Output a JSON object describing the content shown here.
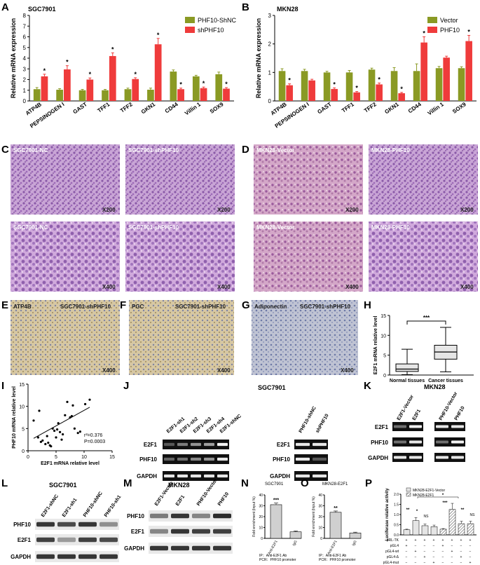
{
  "panels": {
    "A": {
      "label": "A",
      "title": "SGC7901",
      "ylabel": "Relative mRNA expression"
    },
    "B": {
      "label": "B",
      "title": "MKN28",
      "ylabel": "Relative mRNA expression"
    },
    "C": {
      "label": "C",
      "images": [
        "SGC7901-NC",
        "SGC7901-shPHF10",
        "SGC7901-NC",
        "SGC7901-shPHF10"
      ],
      "mags": [
        "X200",
        "X200",
        "X400",
        "X400"
      ]
    },
    "D": {
      "label": "D",
      "images": [
        "MKN28-Vector",
        "MKN28-PHF10",
        "MKN28-Vector",
        "MKN28-PHF10"
      ],
      "mags": [
        "X200",
        "X200",
        "X400",
        "X400"
      ]
    },
    "E": {
      "label": "E",
      "marker": "ATP4B",
      "cell": "SGC7901-shPHF10",
      "mag": "X400"
    },
    "F": {
      "label": "F",
      "marker": "PGC",
      "cell": "SGC7901-shPHF10",
      "mag": "X400"
    },
    "G": {
      "label": "G",
      "marker": "Adiponectin",
      "cell": "SGC7901-shPHF10",
      "mag": "X400"
    },
    "H": {
      "label": "H",
      "ylabel": "E2F1 mRNA relative level",
      "sig": "***"
    },
    "I": {
      "label": "I",
      "xlabel": "E2F1 mRNA relative level",
      "ylabel": "PHF10 mRNA  relative level",
      "r2": "r²=0.376",
      "p": "P=0.0003"
    },
    "J": {
      "label": "J",
      "title": "SGC7901",
      "lanes_left": [
        "E2F1-sh1",
        "E2F1-sh2",
        "E2F1-sh3",
        "E2F1-sh4",
        "E2F1-shNC"
      ],
      "lanes_right": [
        "PHF10-shNC",
        "shPHF10"
      ],
      "rows": [
        "E2F1",
        "PHF10",
        "GAPDH"
      ]
    },
    "K": {
      "label": "K",
      "title": "MKN28",
      "lanes_left": [
        "E2F1-Vector",
        "E2F1"
      ],
      "lanes_right": [
        "PHF10-Vector",
        "PHF10"
      ],
      "rows": [
        "E2F1",
        "PHF10",
        "GAPDH"
      ]
    },
    "L": {
      "label": "L",
      "title": "SGC7901",
      "lanes": [
        "E2F1-shNC",
        "E2F1-sh1",
        "PHF10-shNC",
        "PHF10-sh1"
      ],
      "rows": [
        "PHF10",
        "E2F1",
        "GAPDH"
      ]
    },
    "M": {
      "label": "M",
      "title": "MKN28",
      "lanes": [
        "E2F1-Vector",
        "E2F1",
        "PHF10-Vector",
        "PHF10"
      ],
      "rows": [
        "PHF10",
        "E2F1",
        "GAPDH"
      ]
    },
    "N": {
      "label": "N",
      "title": "SGC7901",
      "ylabel": "Fold enrichment (Input %)",
      "cats": [
        "Anti-E2F1",
        "IgG"
      ],
      "sig": "***",
      "foot1": "IP：Anti-E2F1 Ab",
      "foot2": "PCR：PHF10 promoter"
    },
    "O": {
      "label": "O",
      "title": "MKN28-E2F1",
      "ylabel": "Fold enrichment (Input %)",
      "cats": [
        "Anti-E2F1",
        "IgG"
      ],
      "sig": "**",
      "foot1": "IP：Anti-E2F1 Ab",
      "foot2": "PCR：PHF10 promoter"
    },
    "P": {
      "label": "P",
      "ylabel": "Luciferase relative activity",
      "legend": [
        "MKN28-E2F1-Vector",
        "MKN28-E2F1"
      ],
      "rowlabels": [
        "pRL-TK",
        "pGL4",
        "pGL4-wt",
        "pGL4-Δ",
        "pGL4-mut"
      ],
      "rowsigns": [
        [
          "+",
          "+",
          "+",
          "+",
          "+",
          "+",
          "+",
          "+"
        ],
        [
          "+",
          "−",
          "−",
          "−",
          "+",
          "−",
          "−",
          "−"
        ],
        [
          "−",
          "+",
          "−",
          "−",
          "−",
          "+",
          "−",
          "−"
        ],
        [
          "−",
          "−",
          "+",
          "−",
          "−",
          "−",
          "+",
          "−"
        ],
        [
          "−",
          "−",
          "−",
          "+",
          "−",
          "−",
          "−",
          "+"
        ]
      ],
      "sigs": [
        "**",
        "*",
        "NS",
        "***",
        "**",
        "NS",
        "*"
      ]
    }
  },
  "chart_data": [
    {
      "type": "bar",
      "panel": "A",
      "title": "SGC7901",
      "ylabel": "Relative mRNA expression",
      "ylim": [
        0,
        8
      ],
      "yticks": [
        0,
        1,
        2,
        3,
        4,
        5,
        6,
        7,
        8
      ],
      "categories": [
        "ATP4B",
        "PEPSINOGEN I",
        "GAST",
        "TFF1",
        "TFF2",
        "GKN1",
        "CD44",
        "Villin 1",
        "SOX9"
      ],
      "series": [
        {
          "name": "PHF10-ShNC",
          "color": "#8a9a24",
          "values": [
            1.1,
            1.05,
            1.0,
            1.0,
            1.1,
            1.05,
            2.75,
            2.3,
            2.5
          ],
          "err": [
            0.15,
            0.1,
            0.08,
            0.08,
            0.1,
            0.15,
            0.15,
            0.1,
            0.2
          ]
        },
        {
          "name": "shPHF10",
          "color": "#ef3b3b",
          "values": [
            2.3,
            2.95,
            2.0,
            4.2,
            2.05,
            5.3,
            1.1,
            1.2,
            1.15
          ],
          "err": [
            0.2,
            0.35,
            0.15,
            0.3,
            0.12,
            0.55,
            0.1,
            0.1,
            0.1
          ]
        }
      ],
      "sig": [
        "*",
        "*",
        "*",
        "*",
        "*",
        "*",
        "*",
        "*",
        "*"
      ],
      "legend": "top-right"
    },
    {
      "type": "bar",
      "panel": "B",
      "title": "MKN28",
      "ylabel": "Relative mRNA expression",
      "ylim": [
        0,
        3
      ],
      "yticks": [
        0,
        1,
        2,
        3
      ],
      "categories": [
        "ATP4B",
        "PEPSINOGEN I",
        "GAST",
        "TFF1",
        "TFF2",
        "GKN1",
        "CD44",
        "Villin 1",
        "SOX9"
      ],
      "series": [
        {
          "name": "Vector",
          "color": "#8a9a24",
          "values": [
            1.05,
            1.05,
            1.0,
            1.0,
            1.1,
            1.05,
            1.05,
            1.15,
            1.15
          ],
          "err": [
            0.08,
            0.06,
            0.04,
            0.07,
            0.05,
            0.12,
            0.25,
            0.06,
            0.05
          ]
        },
        {
          "name": "PHF10",
          "color": "#ef3b3b",
          "values": [
            0.55,
            0.72,
            0.42,
            0.3,
            0.58,
            0.27,
            2.05,
            1.52,
            2.1
          ],
          "err": [
            0.05,
            0.04,
            0.04,
            0.03,
            0.05,
            0.03,
            0.2,
            0.05,
            0.2
          ]
        }
      ],
      "sig": [
        "*",
        "",
        "*",
        "*",
        "*",
        "*",
        "*",
        "",
        "*"
      ],
      "legend": "top-right"
    },
    {
      "type": "box",
      "panel": "H",
      "ylabel": "E2F1 mRNA relative level",
      "ylim": [
        0,
        15
      ],
      "yticks": [
        0,
        5,
        10,
        15
      ],
      "categories": [
        "Normal tissues",
        "Cancer tissues"
      ],
      "boxes": [
        {
          "min": 0.1,
          "q1": 0.9,
          "median": 1.5,
          "q3": 2.8,
          "max": 6.5
        },
        {
          "min": 0.8,
          "q1": 4.0,
          "median": 5.8,
          "q3": 7.5,
          "max": 12.0
        }
      ]
    },
    {
      "type": "scatter",
      "panel": "I",
      "xlabel": "E2F1 mRNA relative level",
      "ylabel": "PHF10 mRNA  relative level",
      "xlim": [
        0,
        15
      ],
      "ylim": [
        0,
        15
      ],
      "xticks": [
        0,
        5,
        10,
        15
      ],
      "yticks": [
        0,
        5,
        10,
        15
      ],
      "points": [
        [
          1.0,
          6.8
        ],
        [
          1.8,
          3.0
        ],
        [
          2.0,
          9.0
        ],
        [
          2.3,
          2.0
        ],
        [
          2.6,
          2.3
        ],
        [
          3.1,
          1.5
        ],
        [
          3.4,
          3.3
        ],
        [
          3.6,
          1.8
        ],
        [
          3.9,
          1.2
        ],
        [
          4.1,
          1.0
        ],
        [
          4.4,
          5.0
        ],
        [
          4.7,
          4.5
        ],
        [
          5.0,
          3.0
        ],
        [
          5.2,
          4.8
        ],
        [
          5.4,
          6.2
        ],
        [
          5.7,
          4.2
        ],
        [
          6.0,
          2.5
        ],
        [
          6.2,
          3.7
        ],
        [
          6.6,
          8.0
        ],
        [
          7.0,
          11.0
        ],
        [
          7.5,
          7.5
        ],
        [
          7.8,
          7.8
        ],
        [
          8.0,
          10.2
        ],
        [
          8.3,
          5.0
        ],
        [
          8.9,
          4.0
        ],
        [
          9.3,
          4.3
        ],
        [
          10.2,
          10.5
        ],
        [
          11.0,
          11.5
        ]
      ],
      "fit": {
        "x": [
          1,
          11
        ],
        "y": [
          2.8,
          9.8
        ]
      },
      "r2": 0.376,
      "p": 0.0003
    },
    {
      "type": "bar",
      "panel": "N",
      "title": "SGC7901",
      "ylabel": "Fold enrichment (Input %)",
      "ylim": [
        0,
        40
      ],
      "yticks": [
        0,
        10,
        20,
        30,
        40
      ],
      "categories": [
        "Anti-E2F1",
        "IgG"
      ],
      "values": [
        31,
        6
      ],
      "err": [
        1.5,
        0.8
      ]
    },
    {
      "type": "bar",
      "panel": "O",
      "title": "MKN28-E2F1",
      "ylabel": "Fold enrichment (Input %)",
      "ylim": [
        0,
        40
      ],
      "yticks": [
        0,
        10,
        20,
        30,
        40
      ],
      "categories": [
        "Anti-E2F1",
        "IgG"
      ],
      "values": [
        24,
        5
      ],
      "err": [
        1.2,
        0.7
      ]
    },
    {
      "type": "bar",
      "panel": "P",
      "ylabel": "Luciferase relative activity",
      "ylim": [
        0,
        2.0
      ],
      "yticks": [
        0.0,
        0.5,
        1.0,
        1.5,
        2.0
      ],
      "series": [
        {
          "name": "MKN28-E2F1-Vector",
          "values": [
            0.25,
            0.7,
            0.45,
            0.4
          ]
        },
        {
          "name": "MKN28-E2F1",
          "values": [
            0.28,
            1.25,
            0.55,
            0.55
          ]
        }
      ],
      "err": [
        0.03,
        0.15,
        0.08,
        0.08,
        0.03,
        0.3,
        0.12,
        0.12
      ]
    }
  ]
}
